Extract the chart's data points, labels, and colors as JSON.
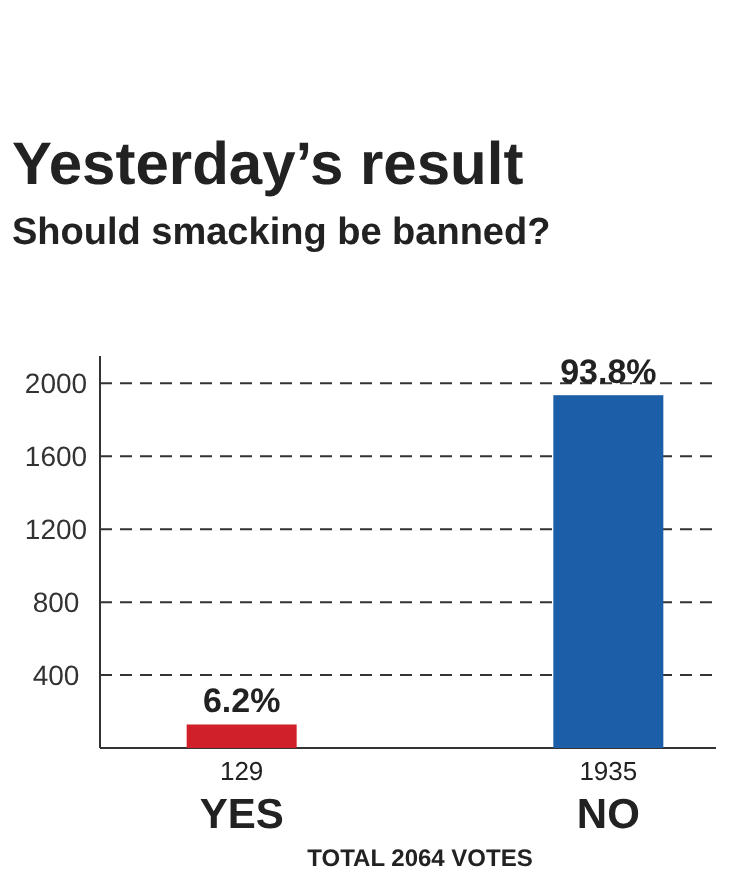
{
  "chart_data": {
    "type": "bar",
    "title": "Yesterday’s result",
    "subtitle": "Should smacking be banned?",
    "categories": [
      "YES",
      "NO"
    ],
    "values": [
      129,
      1935
    ],
    "colors": [
      "#d0212a",
      "#1d5ea8"
    ],
    "value_labels": [
      "129",
      "1935"
    ],
    "ylim": [
      0,
      2150
    ],
    "yticks": [
      400,
      800,
      1200,
      1600,
      2000
    ],
    "grid": "y",
    "line_style": "dashed",
    "annotations": [
      {
        "text": "6.2%",
        "x": "YES",
        "y": 129
      },
      {
        "text": "93.8%",
        "x": "NO",
        "y": 1935
      },
      "TOTAL 2064 VOTES"
    ]
  }
}
